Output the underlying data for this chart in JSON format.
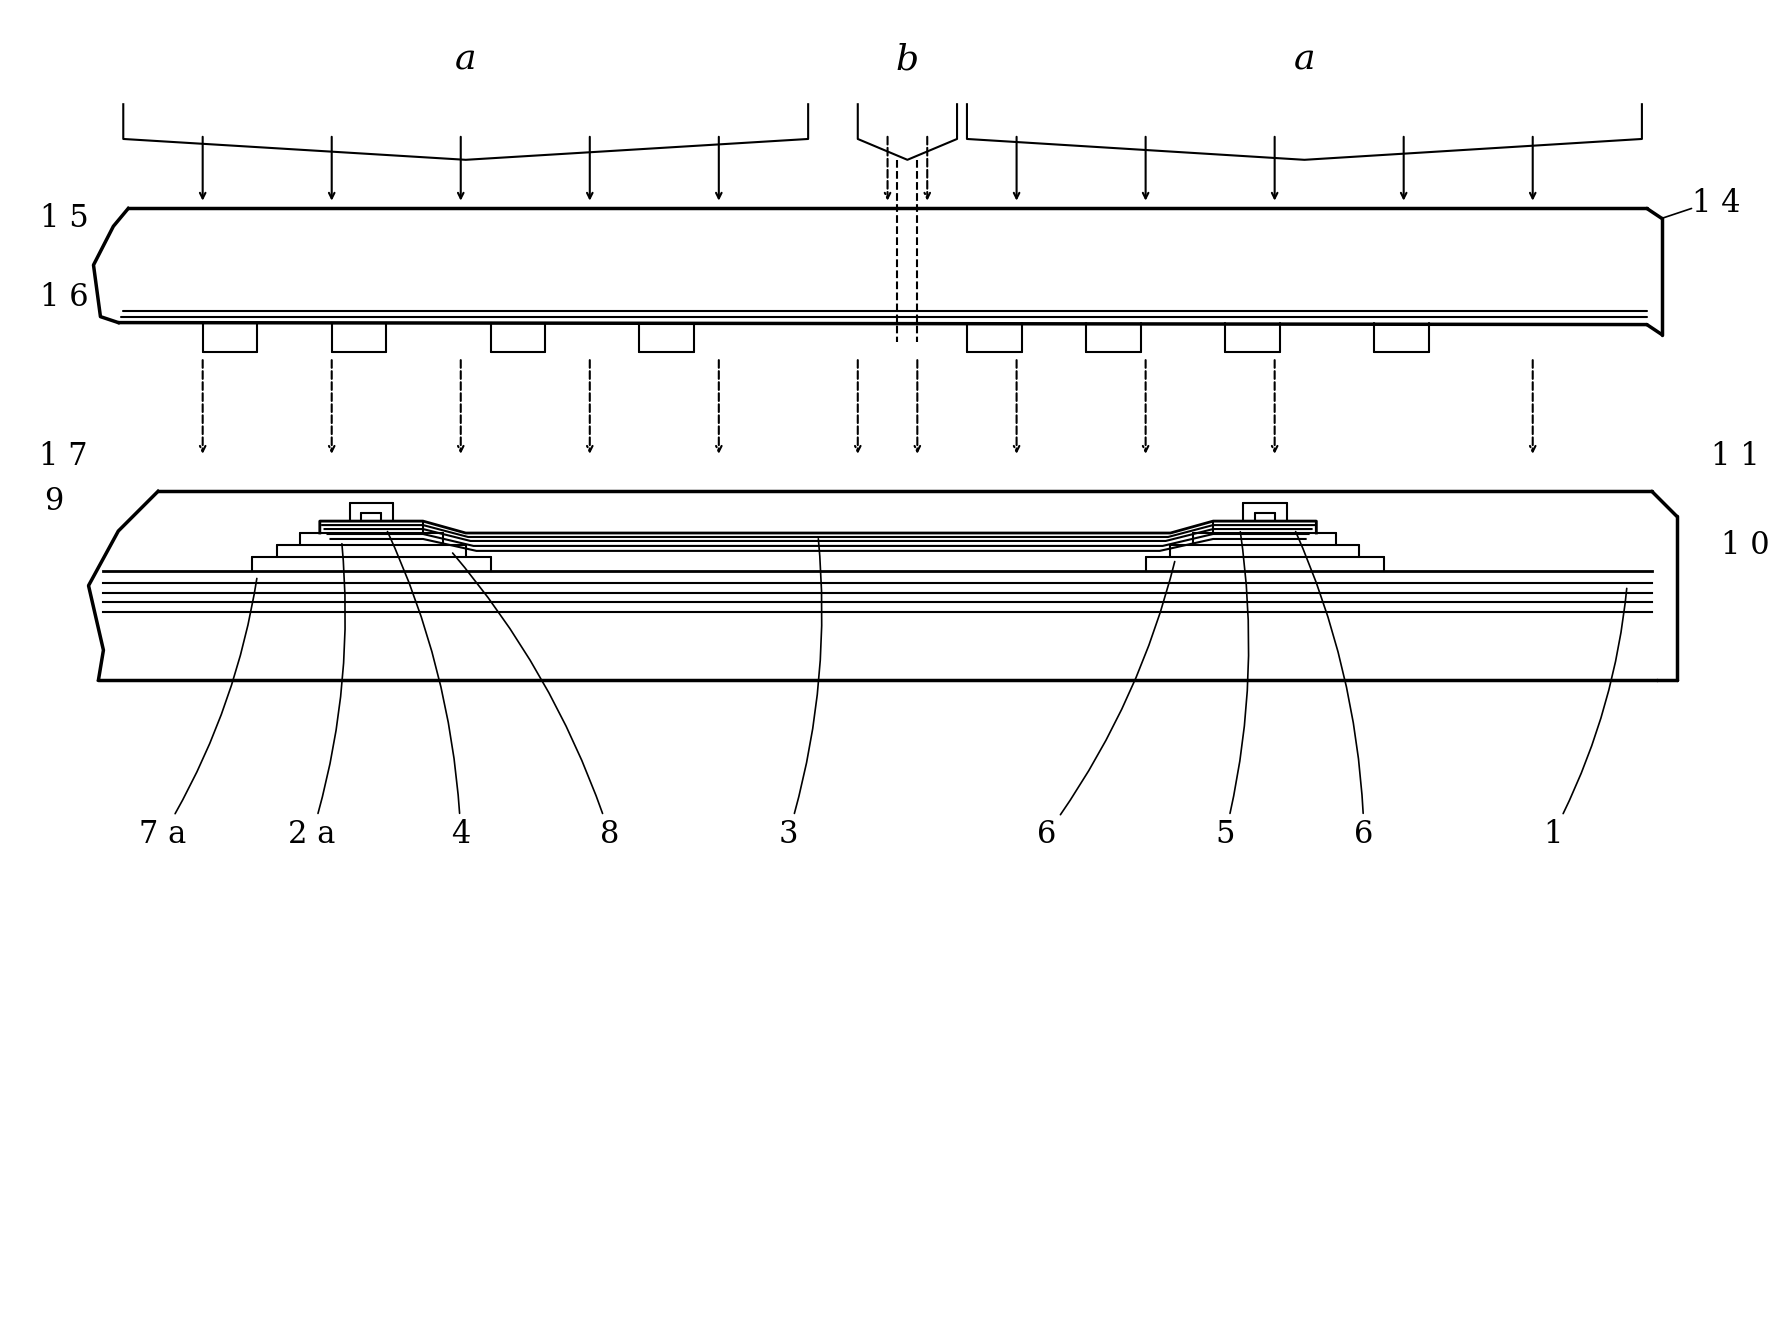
{
  "bg_color": "#ffffff",
  "line_color": "#000000",
  "fig_width": 17.81,
  "fig_height": 13.38,
  "dpi": 100,
  "labels": {
    "a_left": "a",
    "a_right": "a",
    "b": "b",
    "14": "1 4",
    "15": "1 5",
    "16": "1 6",
    "17": "1 7",
    "11": "1 1",
    "9": "9",
    "10": "1 0",
    "7a": "7 a",
    "2a": "2 a",
    "4": "4",
    "8": "8",
    "3": "3",
    "6_left": "6",
    "5": "5",
    "6_right": "6",
    "1": "1"
  }
}
